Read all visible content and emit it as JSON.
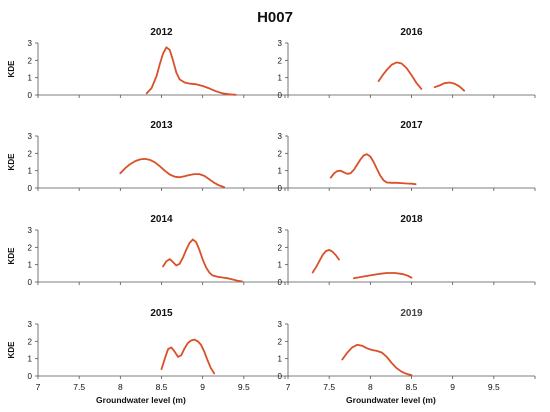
{
  "figure_title": "H007",
  "x_axis": {
    "label": "Groundwater level (m)",
    "ticks": [
      "7",
      "7.5",
      "8",
      "8.5",
      "9",
      "9.5"
    ]
  },
  "y_axis": {
    "label": "KDE",
    "ticks": [
      "0",
      "1",
      "2",
      "3"
    ]
  },
  "colors": {
    "series": "#d9502a",
    "axis": "#555555",
    "text": "#111111"
  },
  "chart_data": [
    {
      "type": "line",
      "title": "2012",
      "xlim": [
        7,
        10
      ],
      "ylim": [
        0,
        3
      ],
      "series": [
        {
          "x": [
            8.32,
            8.38,
            8.44,
            8.48,
            8.52,
            8.56,
            8.6,
            8.64,
            8.68,
            8.72,
            8.78,
            8.85,
            8.92,
            9.0,
            9.08,
            9.16,
            9.24,
            9.32,
            9.4
          ],
          "y": [
            0.1,
            0.4,
            1.1,
            1.8,
            2.4,
            2.75,
            2.6,
            2.0,
            1.3,
            0.9,
            0.72,
            0.65,
            0.62,
            0.52,
            0.38,
            0.22,
            0.1,
            0.04,
            0.01
          ]
        }
      ]
    },
    {
      "type": "line",
      "title": "2016",
      "xlim": [
        7,
        10
      ],
      "ylim": [
        0,
        3
      ],
      "series": [
        {
          "x": [
            8.1,
            8.15,
            8.2,
            8.26,
            8.32,
            8.38,
            8.44,
            8.5,
            8.56,
            8.62
          ],
          "y": [
            0.8,
            1.15,
            1.45,
            1.75,
            1.88,
            1.82,
            1.55,
            1.15,
            0.7,
            0.35
          ]
        },
        {
          "x": [
            8.78,
            8.84,
            8.9,
            8.96,
            9.02,
            9.08,
            9.14
          ],
          "y": [
            0.45,
            0.55,
            0.68,
            0.72,
            0.66,
            0.5,
            0.25
          ]
        }
      ]
    },
    {
      "type": "line",
      "title": "2013",
      "xlim": [
        7,
        10
      ],
      "ylim": [
        0,
        3
      ],
      "series": [
        {
          "x": [
            8.0,
            8.06,
            8.12,
            8.18,
            8.24,
            8.3,
            8.36,
            8.42,
            8.48,
            8.54,
            8.6,
            8.66,
            8.72,
            8.78,
            8.84,
            8.9,
            8.96,
            9.02,
            9.08,
            9.14,
            9.2,
            9.26
          ],
          "y": [
            0.85,
            1.15,
            1.38,
            1.55,
            1.65,
            1.68,
            1.62,
            1.48,
            1.25,
            1.0,
            0.78,
            0.65,
            0.62,
            0.68,
            0.75,
            0.8,
            0.8,
            0.7,
            0.5,
            0.3,
            0.15,
            0.05
          ]
        }
      ]
    },
    {
      "type": "line",
      "title": "2017",
      "xlim": [
        7,
        10
      ],
      "ylim": [
        0,
        3
      ],
      "series": [
        {
          "x": [
            7.52,
            7.56,
            7.6,
            7.64,
            7.68,
            7.72,
            7.76,
            7.8,
            7.84,
            7.88,
            7.92,
            7.96,
            8.0,
            8.04,
            8.08,
            8.12,
            8.16,
            8.2,
            8.26,
            8.32,
            8.38,
            8.44,
            8.5,
            8.55
          ],
          "y": [
            0.6,
            0.85,
            0.98,
            1.0,
            0.9,
            0.82,
            0.85,
            1.05,
            1.35,
            1.65,
            1.88,
            1.95,
            1.82,
            1.5,
            1.1,
            0.72,
            0.45,
            0.32,
            0.3,
            0.3,
            0.28,
            0.26,
            0.25,
            0.22
          ]
        }
      ]
    },
    {
      "type": "line",
      "title": "2014",
      "xlim": [
        7,
        10
      ],
      "ylim": [
        0,
        3
      ],
      "series": [
        {
          "x": [
            8.52,
            8.56,
            8.6,
            8.64,
            8.68,
            8.72,
            8.76,
            8.8,
            8.84,
            8.88,
            8.92,
            8.96,
            9.0,
            9.04,
            9.08,
            9.12,
            9.18,
            9.24,
            9.3,
            9.36,
            9.42,
            9.48
          ],
          "y": [
            0.9,
            1.2,
            1.32,
            1.15,
            0.95,
            1.05,
            1.4,
            1.85,
            2.25,
            2.45,
            2.3,
            1.85,
            1.3,
            0.85,
            0.55,
            0.38,
            0.3,
            0.26,
            0.22,
            0.15,
            0.08,
            0.03
          ]
        }
      ]
    },
    {
      "type": "line",
      "title": "2018",
      "xlim": [
        7,
        10
      ],
      "ylim": [
        0,
        3
      ],
      "series": [
        {
          "x": [
            7.3,
            7.34,
            7.38,
            7.42,
            7.46,
            7.5,
            7.54,
            7.58,
            7.62
          ],
          "y": [
            0.55,
            0.85,
            1.2,
            1.55,
            1.78,
            1.85,
            1.75,
            1.55,
            1.3
          ]
        },
        {
          "x": [
            7.8,
            7.9,
            8.0,
            8.1,
            8.2,
            8.3,
            8.4,
            8.46,
            8.5
          ],
          "y": [
            0.22,
            0.3,
            0.38,
            0.46,
            0.52,
            0.52,
            0.45,
            0.35,
            0.25
          ]
        }
      ]
    },
    {
      "type": "line",
      "title": "2015",
      "xlim": [
        7,
        10
      ],
      "ylim": [
        0,
        3
      ],
      "series": [
        {
          "x": [
            8.5,
            8.54,
            8.58,
            8.62,
            8.66,
            8.7,
            8.74,
            8.78,
            8.82,
            8.86,
            8.9,
            8.94,
            8.98,
            9.02,
            9.06,
            9.1,
            9.14
          ],
          "y": [
            0.4,
            1.0,
            1.55,
            1.65,
            1.4,
            1.1,
            1.2,
            1.6,
            1.9,
            2.05,
            2.1,
            2.0,
            1.8,
            1.4,
            0.9,
            0.45,
            0.15
          ]
        }
      ]
    },
    {
      "type": "line",
      "title": "2019",
      "xlim": [
        7,
        10
      ],
      "ylim": [
        0,
        3
      ],
      "series": [
        {
          "x": [
            7.66,
            7.72,
            7.78,
            7.84,
            7.9,
            7.96,
            8.02,
            8.08,
            8.14,
            8.2,
            8.26,
            8.32,
            8.38,
            8.44,
            8.5
          ],
          "y": [
            0.95,
            1.35,
            1.65,
            1.8,
            1.75,
            1.6,
            1.5,
            1.45,
            1.35,
            1.1,
            0.75,
            0.45,
            0.25,
            0.12,
            0.05
          ]
        }
      ]
    }
  ]
}
